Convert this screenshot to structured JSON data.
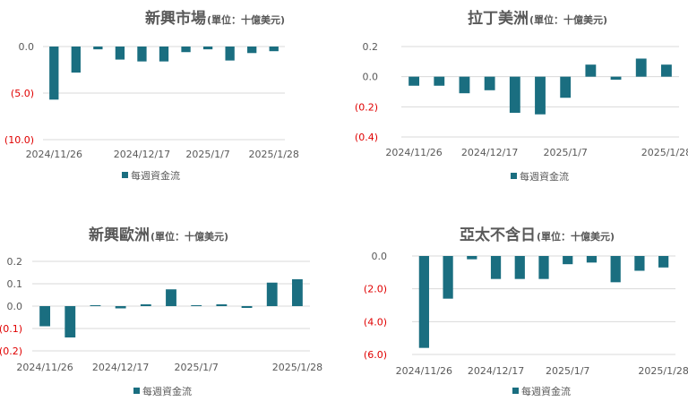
{
  "legend_label": "每週資金流",
  "bar_color": "#1a6e80",
  "negative_tick_color": "#e00000",
  "chart_data": [
    {
      "type": "bar",
      "title": "新興市場",
      "title_suffix": "(單位：十億美元)",
      "yticks": [
        "0.0",
        "(5.0)",
        "(10.0)"
      ],
      "ytick_values": [
        0,
        -5,
        -10
      ],
      "ylim": [
        -10,
        0
      ],
      "xticks": [
        "2024/11/26",
        "2024/12/17",
        "2025/1/7",
        "2025/1/28"
      ],
      "legend": "每週資金流",
      "values": [
        -5.7,
        -2.8,
        -0.3,
        -1.4,
        -1.6,
        -1.6,
        -0.6,
        -0.3,
        -1.5,
        -0.7,
        -0.5
      ]
    },
    {
      "type": "bar",
      "title": "拉丁美洲",
      "title_suffix": "(單位：十億美元)",
      "yticks": [
        "0.2",
        "0.0",
        "(0.2)",
        "(0.4)"
      ],
      "ytick_values": [
        0.2,
        0,
        -0.2,
        -0.4
      ],
      "ylim": [
        -0.4,
        0.2
      ],
      "xticks": [
        "2024/11/26",
        "2024/12/17",
        "2025/1/7",
        "2025/1/28"
      ],
      "legend": "每週資金流",
      "values": [
        -0.06,
        -0.06,
        -0.11,
        -0.09,
        -0.24,
        -0.25,
        -0.14,
        0.08,
        -0.02,
        0.12,
        0.08
      ]
    },
    {
      "type": "bar",
      "title": "新興歐洲",
      "title_suffix": "(單位：十億美元)",
      "yticks": [
        "0.2",
        "0.1",
        "0.0",
        "(0.1)",
        "(0.2)"
      ],
      "ytick_values": [
        0.2,
        0.1,
        0,
        -0.1,
        -0.2
      ],
      "ylim": [
        -0.2,
        0.2
      ],
      "xticks": [
        "2024/11/26",
        "2024/12/17",
        "2025/1/7",
        "2025/1/28"
      ],
      "legend": "每週資金流",
      "values": [
        -0.09,
        -0.14,
        0.004,
        -0.01,
        0.008,
        0.075,
        0.004,
        0.008,
        -0.008,
        0.105,
        0.12
      ]
    },
    {
      "type": "bar",
      "title": "亞太不含日",
      "title_suffix": "(單位：十億美元)",
      "yticks": [
        "0.0",
        "(2.0)",
        "(4.0)",
        "(6.0)"
      ],
      "ytick_values": [
        0,
        -2,
        -4,
        -6
      ],
      "ylim": [
        -6,
        0
      ],
      "xticks": [
        "2024/11/26",
        "2024/12/17",
        "2025/1/7",
        "2025/1/28"
      ],
      "legend": "每週資金流",
      "values": [
        -5.6,
        -2.6,
        -0.2,
        -1.4,
        -1.4,
        -1.4,
        -0.5,
        -0.4,
        -1.6,
        -0.9,
        -0.7
      ]
    }
  ]
}
